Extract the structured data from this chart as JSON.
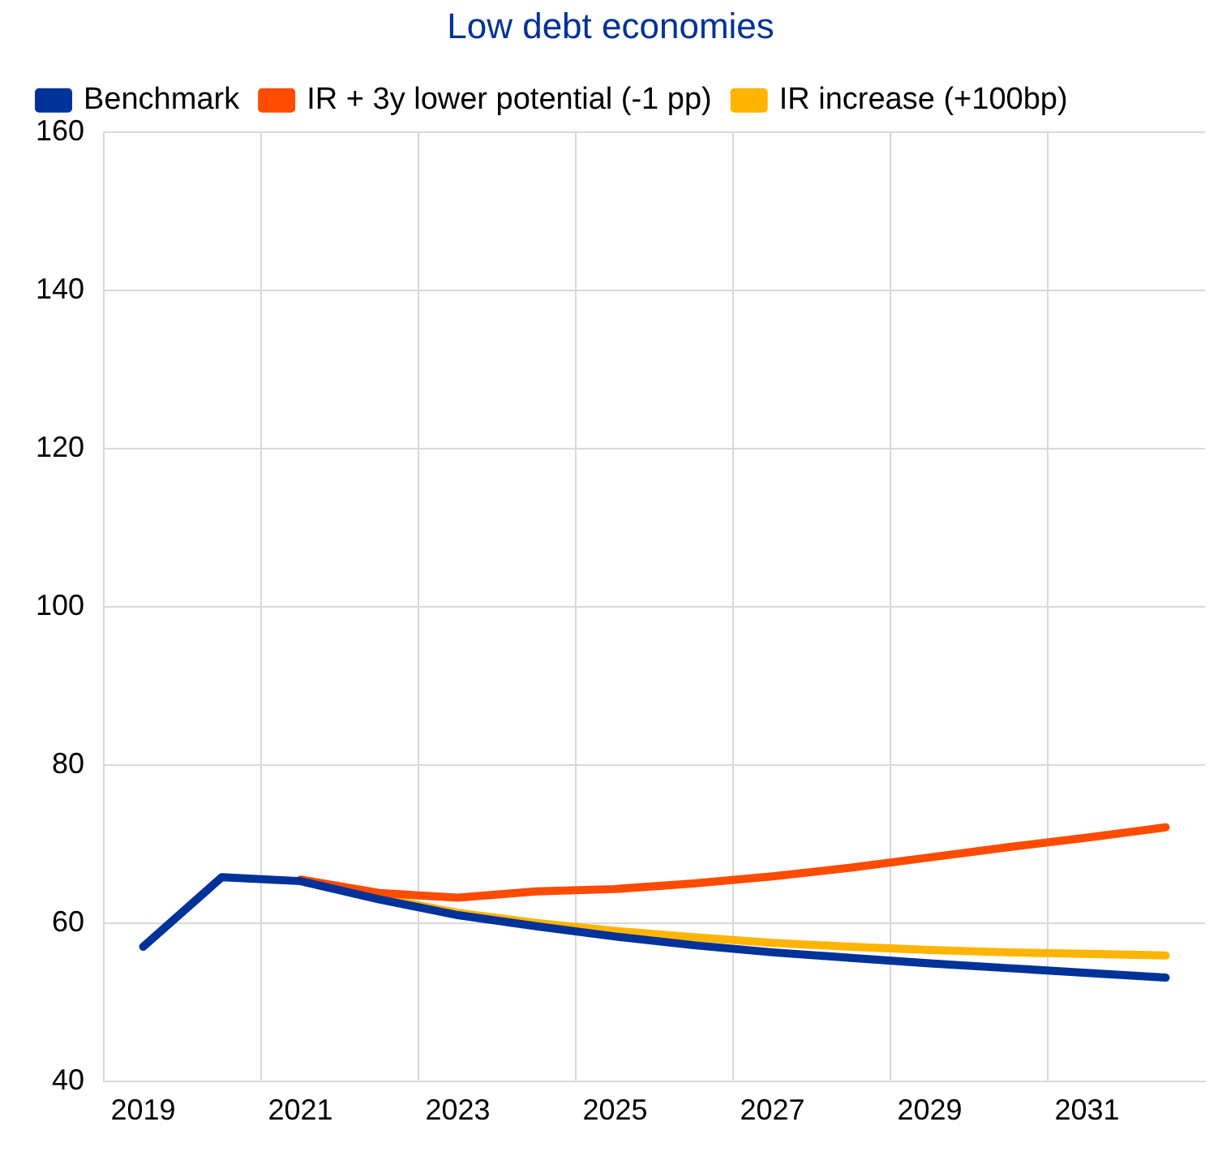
{
  "chart_data": {
    "type": "line",
    "title": "Low debt economies",
    "categories": [
      "2019",
      null,
      "2021",
      null,
      "2023",
      null,
      "2025",
      null,
      "2027",
      null,
      "2029",
      null,
      "2031",
      null
    ],
    "series": [
      {
        "name": "Benchmark",
        "color": "#003299",
        "values": [
          57,
          65.8,
          65.3,
          63,
          61,
          59.6,
          58.3,
          57.2,
          56.3,
          55.6,
          54.9,
          54.3,
          53.7,
          53.1
        ]
      },
      {
        "name": "IR + 3y lower potential (-1 pp)",
        "color": "#ff4b00",
        "values": [
          null,
          null,
          65.5,
          63.8,
          63.2,
          64,
          64.3,
          65,
          65.9,
          67,
          68.3,
          69.6,
          70.8,
          72.1
        ]
      },
      {
        "name": "IR increase (+100bp)",
        "color": "#ffb400",
        "values": [
          null,
          null,
          65.3,
          63.2,
          61.3,
          60,
          59,
          58.2,
          57.5,
          57,
          56.6,
          56.3,
          56.1,
          55.9
        ]
      }
    ],
    "ylim": [
      40,
      160
    ],
    "yticks": [
      40,
      60,
      80,
      100,
      120,
      140,
      160
    ],
    "grid": true,
    "legend": "top",
    "marker": "none",
    "line_style": "solid"
  }
}
